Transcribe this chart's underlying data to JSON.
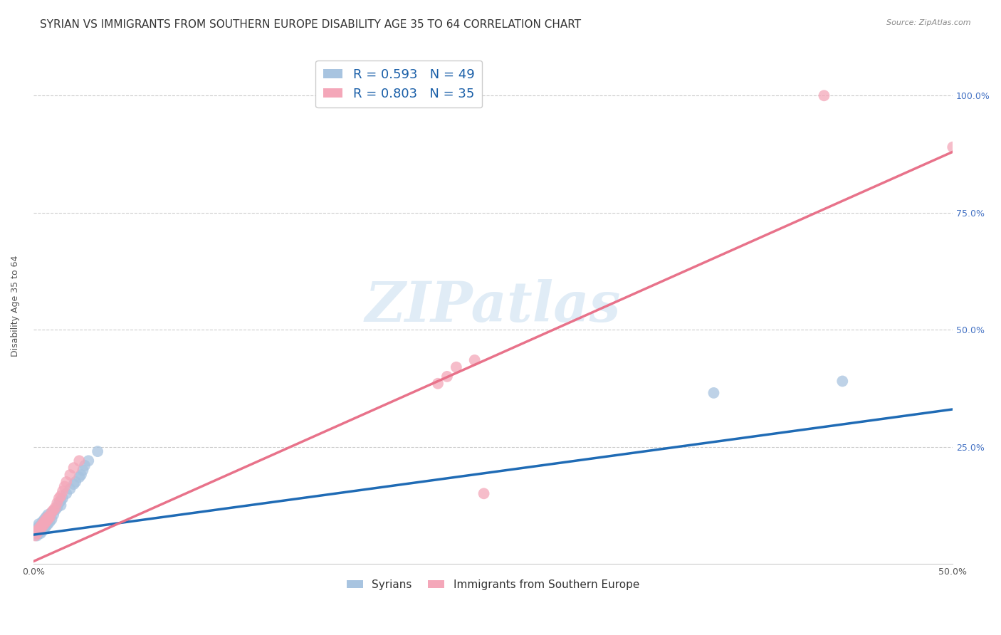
{
  "title": "SYRIAN VS IMMIGRANTS FROM SOUTHERN EUROPE DISABILITY AGE 35 TO 64 CORRELATION CHART",
  "source": "Source: ZipAtlas.com",
  "ylabel": "Disability Age 35 to 64",
  "xlim": [
    0,
    0.5
  ],
  "ylim": [
    0,
    1.1
  ],
  "xticks": [
    0.0,
    0.1,
    0.2,
    0.3,
    0.4,
    0.5
  ],
  "yticks": [
    0.0,
    0.25,
    0.5,
    0.75,
    1.0
  ],
  "xticklabels": [
    "0.0%",
    "",
    "",
    "",
    "",
    "50.0%"
  ],
  "yticklabels": [
    "",
    "",
    "",
    "",
    ""
  ],
  "right_yticklabels": [
    "",
    "25.0%",
    "50.0%",
    "75.0%",
    "100.0%"
  ],
  "blue_R": 0.593,
  "blue_N": 49,
  "pink_R": 0.803,
  "pink_N": 35,
  "blue_color": "#a8c4e0",
  "pink_color": "#f4a7b9",
  "blue_line_color": "#1f6bb5",
  "pink_line_color": "#e8728a",
  "legend_label1": "Syrians",
  "legend_label2": "Immigrants from Southern Europe",
  "watermark": "ZIPatlas",
  "blue_scatter_x": [
    0.001,
    0.001,
    0.002,
    0.002,
    0.002,
    0.003,
    0.003,
    0.003,
    0.003,
    0.004,
    0.004,
    0.004,
    0.004,
    0.005,
    0.005,
    0.005,
    0.005,
    0.006,
    0.006,
    0.006,
    0.007,
    0.007,
    0.007,
    0.008,
    0.008,
    0.008,
    0.009,
    0.009,
    0.01,
    0.01,
    0.011,
    0.012,
    0.013,
    0.014,
    0.015,
    0.015,
    0.016,
    0.018,
    0.02,
    0.022,
    0.023,
    0.025,
    0.026,
    0.027,
    0.028,
    0.03,
    0.035,
    0.37,
    0.44
  ],
  "blue_scatter_y": [
    0.065,
    0.07,
    0.06,
    0.07,
    0.075,
    0.065,
    0.07,
    0.08,
    0.085,
    0.065,
    0.07,
    0.075,
    0.08,
    0.07,
    0.075,
    0.08,
    0.09,
    0.075,
    0.08,
    0.095,
    0.08,
    0.09,
    0.1,
    0.085,
    0.095,
    0.105,
    0.09,
    0.1,
    0.095,
    0.11,
    0.105,
    0.115,
    0.12,
    0.13,
    0.125,
    0.135,
    0.14,
    0.15,
    0.16,
    0.17,
    0.175,
    0.185,
    0.19,
    0.2,
    0.21,
    0.22,
    0.24,
    0.365,
    0.39
  ],
  "pink_scatter_x": [
    0.001,
    0.002,
    0.002,
    0.003,
    0.003,
    0.004,
    0.004,
    0.005,
    0.005,
    0.006,
    0.006,
    0.007,
    0.007,
    0.008,
    0.008,
    0.009,
    0.01,
    0.011,
    0.012,
    0.013,
    0.014,
    0.015,
    0.016,
    0.017,
    0.018,
    0.02,
    0.022,
    0.025,
    0.22,
    0.225,
    0.23,
    0.24,
    0.245,
    0.43,
    0.5
  ],
  "pink_scatter_y": [
    0.06,
    0.065,
    0.07,
    0.07,
    0.075,
    0.075,
    0.08,
    0.08,
    0.085,
    0.085,
    0.09,
    0.09,
    0.095,
    0.095,
    0.1,
    0.1,
    0.11,
    0.115,
    0.12,
    0.13,
    0.14,
    0.145,
    0.155,
    0.165,
    0.175,
    0.19,
    0.205,
    0.22,
    0.385,
    0.4,
    0.42,
    0.435,
    0.15,
    1.0,
    0.89
  ],
  "blue_line_x0": 0.0,
  "blue_line_y0": 0.062,
  "blue_line_x1": 0.5,
  "blue_line_y1": 0.33,
  "pink_line_x0": 0.0,
  "pink_line_y0": 0.005,
  "pink_line_x1": 0.5,
  "pink_line_y1": 0.88,
  "grid_color": "#cccccc",
  "background_color": "#ffffff",
  "title_fontsize": 11,
  "axis_fontsize": 9,
  "tick_fontsize": 9,
  "right_tick_color": "#4472c4"
}
